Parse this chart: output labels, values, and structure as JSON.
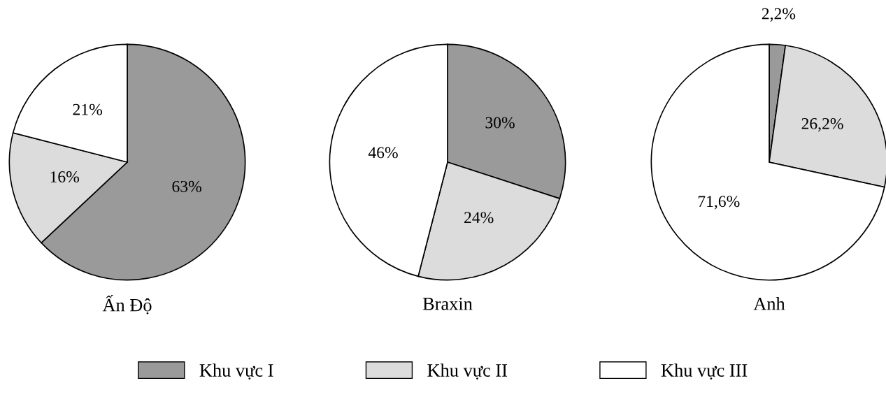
{
  "chart_data": [
    {
      "type": "pie",
      "title": "Ấn Độ",
      "categories": [
        "Khu vực I",
        "Khu vực II",
        "Khu vực III"
      ],
      "values": [
        63,
        16,
        21
      ],
      "value_labels": [
        "63%",
        "16%",
        "21%"
      ],
      "colors": [
        "#9a9a9a",
        "#dcdcdc",
        "#ffffff"
      ],
      "legend": "bottom"
    },
    {
      "type": "pie",
      "title": "Braxin",
      "categories": [
        null,
        null,
        null
      ],
      "values": [
        30,
        24,
        46
      ],
      "value_labels": [
        "30%",
        "24%",
        "46%"
      ],
      "colors": [
        "#9a9a9a",
        "#dcdcdc",
        "#ffffff"
      ]
    },
    {
      "type": "pie",
      "title": "Anh",
      "categories": [
        null,
        null,
        null
      ],
      "values": [
        2.2,
        26.2,
        71.6
      ],
      "value_labels": [
        "2,2%",
        "26,2%",
        "71,6%"
      ],
      "colors": [
        "#9a9a9a",
        "#dcdcdc",
        "#ffffff"
      ]
    }
  ]
}
